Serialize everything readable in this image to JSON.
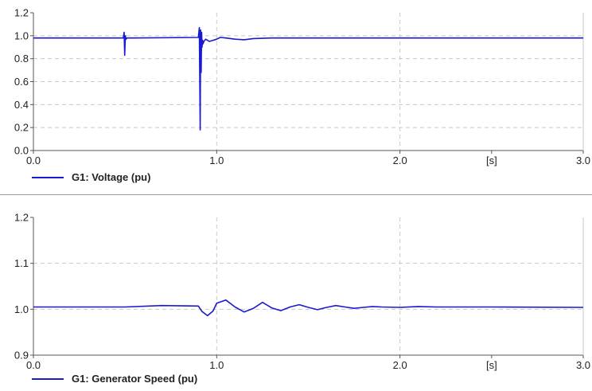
{
  "chart_data": [
    {
      "type": "line",
      "xlim": [
        0.0,
        3.0
      ],
      "ylim": [
        0.0,
        1.2
      ],
      "x_ticks": [
        {
          "value": 0.0,
          "label": "0.0"
        },
        {
          "value": 1.0,
          "label": "1.0"
        },
        {
          "value": 2.0,
          "label": "2.0"
        },
        {
          "value": 2.5,
          "label": "[s]"
        },
        {
          "value": 3.0,
          "label": "3.0"
        }
      ],
      "y_ticks": [
        {
          "value": 0.0,
          "label": "0.0"
        },
        {
          "value": 0.2,
          "label": "0.2"
        },
        {
          "value": 0.4,
          "label": "0.4"
        },
        {
          "value": 0.6,
          "label": "0.6"
        },
        {
          "value": 0.8,
          "label": "0.8"
        },
        {
          "value": 1.0,
          "label": "1.0"
        },
        {
          "value": 1.2,
          "label": "1.2"
        }
      ],
      "grid": true,
      "legend_position": "bottom-left",
      "series": [
        {
          "name": "G1: Voltage (pu)",
          "color": "#1a1ad0",
          "x": [
            0.0,
            0.49,
            0.495,
            0.498,
            0.502,
            0.505,
            0.51,
            0.55,
            0.9,
            0.905,
            0.91,
            0.912,
            0.915,
            0.918,
            0.92,
            0.923,
            0.926,
            0.93,
            0.94,
            0.96,
            0.98,
            1.0,
            1.02,
            1.05,
            1.1,
            1.15,
            1.2,
            1.3,
            1.5,
            2.0,
            2.5,
            3.0
          ],
          "y": [
            0.98,
            0.98,
            1.03,
            0.83,
            1.0,
            0.97,
            0.98,
            0.98,
            0.985,
            1.07,
            0.18,
            1.05,
            0.68,
            1.03,
            0.9,
            0.96,
            0.93,
            0.95,
            0.97,
            0.95,
            0.96,
            0.97,
            0.985,
            0.98,
            0.97,
            0.965,
            0.975,
            0.98,
            0.98,
            0.98,
            0.98,
            0.98
          ]
        }
      ]
    },
    {
      "type": "line",
      "xlim": [
        0.0,
        3.0
      ],
      "ylim": [
        0.9,
        1.2
      ],
      "x_ticks": [
        {
          "value": 0.0,
          "label": "0.0"
        },
        {
          "value": 1.0,
          "label": "1.0"
        },
        {
          "value": 2.0,
          "label": "2.0"
        },
        {
          "value": 2.5,
          "label": "[s]"
        },
        {
          "value": 3.0,
          "label": "3.0"
        }
      ],
      "y_ticks": [
        {
          "value": 0.9,
          "label": "0.9"
        },
        {
          "value": 1.0,
          "label": "1.0"
        },
        {
          "value": 1.1,
          "label": "1.1"
        },
        {
          "value": 1.2,
          "label": "1.2"
        }
      ],
      "grid": true,
      "legend_position": "bottom-left",
      "series": [
        {
          "name": "G1: Generator Speed (pu)",
          "color": "#1a1ad0",
          "x": [
            0.0,
            0.3,
            0.5,
            0.7,
            0.9,
            0.92,
            0.95,
            0.98,
            1.0,
            1.05,
            1.1,
            1.15,
            1.2,
            1.25,
            1.3,
            1.35,
            1.4,
            1.45,
            1.5,
            1.55,
            1.6,
            1.65,
            1.7,
            1.75,
            1.8,
            1.85,
            1.9,
            2.0,
            2.1,
            2.2,
            2.5,
            3.0
          ],
          "y": [
            1.005,
            1.005,
            1.005,
            1.008,
            1.007,
            0.995,
            0.986,
            0.996,
            1.013,
            1.02,
            1.005,
            0.994,
            1.002,
            1.015,
            1.003,
            0.997,
            1.005,
            1.01,
            1.004,
            0.999,
            1.004,
            1.008,
            1.005,
            1.002,
            1.004,
            1.006,
            1.005,
            1.004,
            1.006,
            1.005,
            1.005,
            1.004
          ]
        }
      ]
    }
  ]
}
